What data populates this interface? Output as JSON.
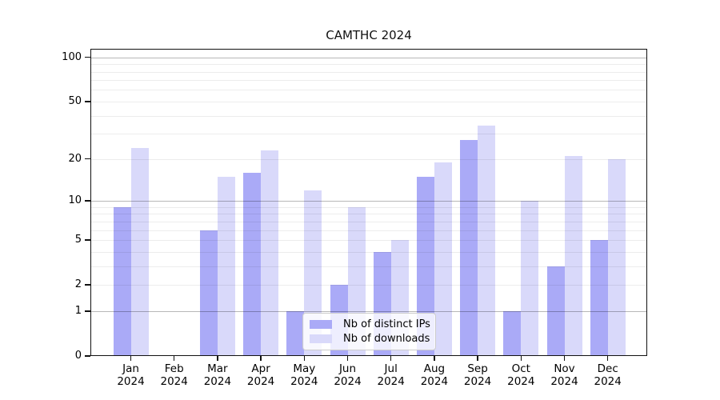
{
  "chart_data": {
    "type": "bar",
    "title": "CAMTHC 2024",
    "categories": [
      "Jan",
      "Feb",
      "Mar",
      "Apr",
      "May",
      "Jun",
      "Jul",
      "Aug",
      "Sep",
      "Oct",
      "Nov",
      "Dec"
    ],
    "year_label": "2024",
    "series": [
      {
        "name": "Nb of distinct IPs",
        "color": "#aaaaf7",
        "values": [
          9,
          0,
          6,
          16,
          1,
          2,
          4,
          15,
          27,
          1,
          3,
          5
        ]
      },
      {
        "name": "Nb of downloads",
        "color": "#d9d9fa",
        "values": [
          24,
          0,
          15,
          23,
          12,
          9,
          5,
          19,
          34,
          10,
          21,
          20
        ]
      }
    ],
    "xlabel": "",
    "ylabel": "",
    "yscale": "log1p",
    "yticks": [
      0,
      1,
      2,
      5,
      10,
      20,
      50,
      100
    ],
    "minor_grid_values": [
      2,
      3,
      4,
      5,
      6,
      7,
      8,
      9,
      20,
      30,
      40,
      50,
      60,
      70,
      80,
      90
    ],
    "major_grid_values": [
      1,
      10,
      100
    ],
    "ylim": [
      0,
      113
    ],
    "grid": "horizontal",
    "legend_position": "lower center",
    "frame_color": "#111111",
    "background_color": "#ffffff"
  }
}
